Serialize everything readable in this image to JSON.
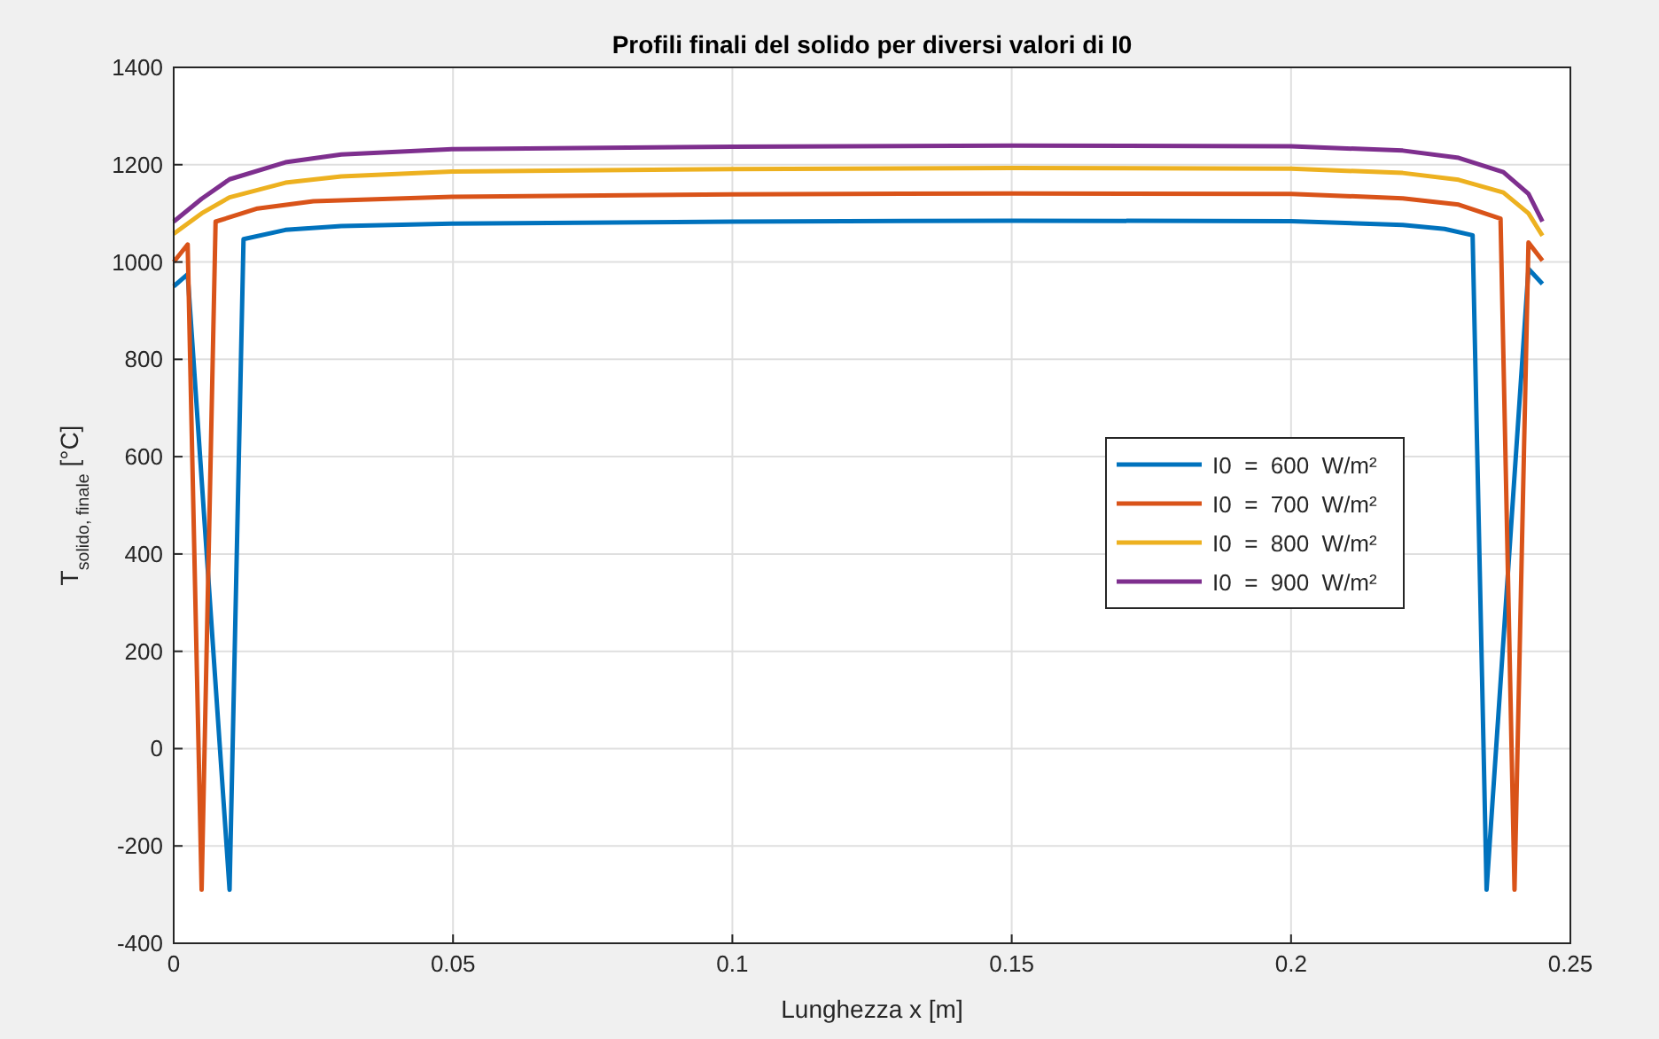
{
  "chart_data": {
    "type": "line",
    "title": "Profili finali del solido per diversi valori di I0",
    "xlabel": "Lunghezza x [m]",
    "ylabel": "T$_{solido, finale}$  [°C]",
    "xlim": [
      0,
      0.25
    ],
    "xticks": [
      0,
      0.05,
      0.1,
      0.15,
      0.2,
      0.25
    ],
    "ylim": [
      -400,
      1400
    ],
    "yticks": [
      -400,
      -200,
      0,
      200,
      400,
      600,
      800,
      1000,
      1200,
      1400
    ],
    "grid": true,
    "legend": "right",
    "line_style": "solid",
    "marker": "none",
    "series": [
      {
        "name": "I0  =  600  W/m²",
        "color": "#0072bd",
        "x": [
          0,
          0.0025,
          0.01,
          0.0125,
          0.02,
          0.03,
          0.05,
          0.1,
          0.15,
          0.2,
          0.22,
          0.2275,
          0.2325,
          0.235,
          0.2425,
          0.245
        ],
        "values": [
          950,
          975,
          -290,
          1047,
          1066,
          1074,
          1079,
          1083,
          1085,
          1084,
          1076,
          1068,
          1055,
          -290,
          986,
          955
        ]
      },
      {
        "name": "I0  =  700  W/m²",
        "color": "#d95319",
        "x": [
          0,
          0.0025,
          0.005,
          0.0075,
          0.015,
          0.025,
          0.05,
          0.1,
          0.15,
          0.2,
          0.22,
          0.23,
          0.2375,
          0.24,
          0.2425,
          0.245
        ],
        "values": [
          1000,
          1036,
          -290,
          1083,
          1110,
          1125,
          1134,
          1139,
          1141,
          1140,
          1131,
          1118,
          1089,
          -290,
          1040,
          1003
        ]
      },
      {
        "name": "I0  =  800  W/m²",
        "color": "#edb120",
        "x": [
          0,
          0.005,
          0.01,
          0.02,
          0.03,
          0.05,
          0.1,
          0.15,
          0.2,
          0.22,
          0.23,
          0.238,
          0.2425,
          0.245
        ],
        "values": [
          1058,
          1100,
          1133,
          1163,
          1176,
          1186,
          1191,
          1193,
          1192,
          1183,
          1169,
          1143,
          1100,
          1054
        ]
      },
      {
        "name": "I0  =  900  W/m²",
        "color": "#7e2f8e",
        "x": [
          0,
          0.005,
          0.01,
          0.02,
          0.03,
          0.05,
          0.1,
          0.15,
          0.2,
          0.22,
          0.23,
          0.238,
          0.2425,
          0.245
        ],
        "values": [
          1083,
          1130,
          1170,
          1205,
          1221,
          1232,
          1237,
          1239,
          1238,
          1229,
          1214,
          1185,
          1140,
          1083
        ]
      }
    ]
  }
}
